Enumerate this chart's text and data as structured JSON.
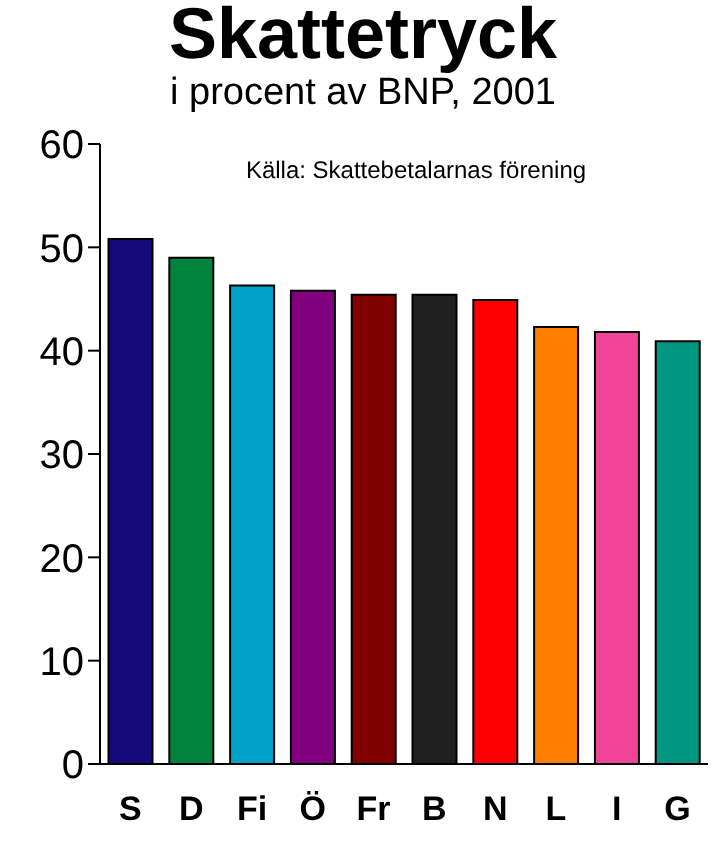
{
  "chart_data": {
    "type": "bar",
    "title": "Skattetryck",
    "subtitle": "i procent av BNP, 2001",
    "annotations": [
      "Källa: Skattebetalarnas förening"
    ],
    "categories": [
      "S",
      "D",
      "Fi",
      "Ö",
      "Fr",
      "B",
      "N",
      "L",
      "I",
      "G"
    ],
    "values": [
      50.8,
      49.0,
      46.3,
      45.8,
      45.4,
      45.4,
      44.9,
      42.3,
      41.8,
      40.9
    ],
    "colors": [
      "#140a78",
      "#00843d",
      "#00a0c8",
      "#800080",
      "#800000",
      "#202020",
      "#ff0000",
      "#ff8000",
      "#f04498",
      "#009680"
    ],
    "ylim": [
      0,
      60
    ],
    "yticks": [
      0,
      10,
      20,
      30,
      40,
      50,
      60
    ],
    "grid": false,
    "legend": false
  }
}
